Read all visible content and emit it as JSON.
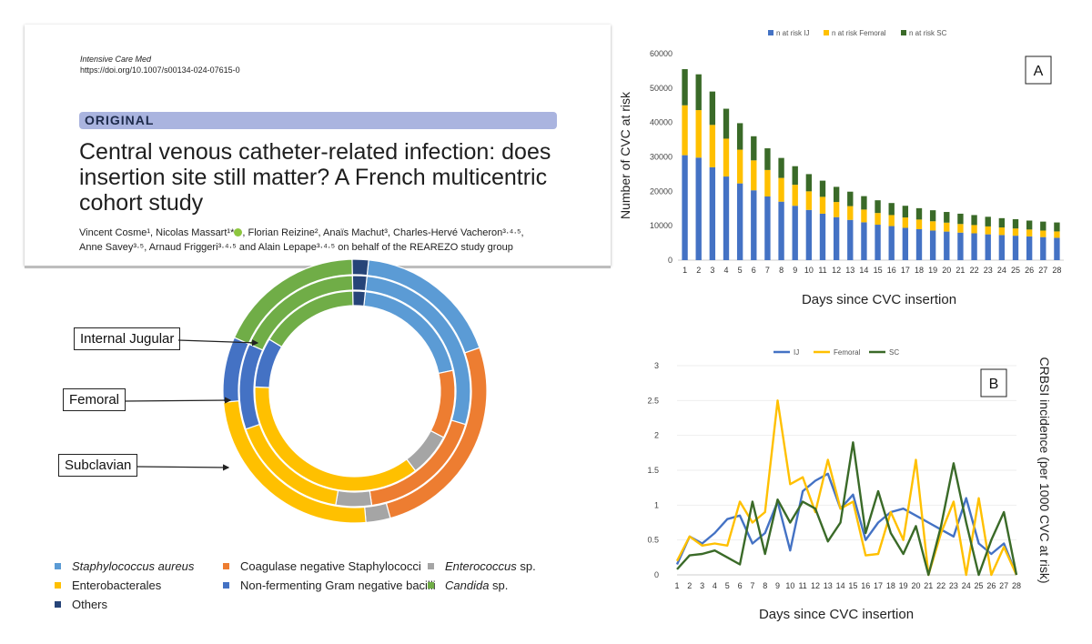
{
  "paper": {
    "journal": "Intensive Care Med",
    "doi": "https://doi.org/10.1007/s00134-024-07615-0",
    "section": "ORIGINAL",
    "title": "Central venous catheter-related infection: does insertion site still matter? A French multicentric cohort study",
    "authors_line1": "Vincent Cosme¹, Nicolas Massart¹*",
    "authors_line1b": ", Florian Reizine², Anaïs Machut³, Charles-Hervé Vacheron³·⁴·⁵,",
    "authors_line2": "Anne Savey³·⁵, Arnaud Friggeri³·⁴·⁵ and Alain Lepape³·⁴·⁵ on behalf of the REAREZO study group"
  },
  "donut_labels": {
    "internal_jugular": "Internal Jugular",
    "femoral": "Femoral",
    "subclavian": "Subclavian"
  },
  "donut_legend": [
    {
      "label": "Staphylococcus aureus",
      "italic": true,
      "color": "#5b9bd5"
    },
    {
      "label": "Coagulase negative Staphylococci",
      "italic": false,
      "color": "#ed7d31"
    },
    {
      "label": "Enterococcus",
      "suffix": " sp.",
      "italic": true,
      "color": "#a5a5a5"
    },
    {
      "label": "Enterobacterales",
      "italic": false,
      "color": "#ffc000"
    },
    {
      "label": "Non-fermenting Gram negative bacilli",
      "italic": false,
      "color": "#4472c4"
    },
    {
      "label": "Candida",
      "suffix": " sp.",
      "italic": true,
      "color": "#70ad47"
    },
    {
      "label": "Others",
      "italic": false,
      "color": "#264478"
    }
  ],
  "chart_data": [
    {
      "type": "bar",
      "stacked": true,
      "panel": "A",
      "xlabel": "Days since CVC insertion",
      "ylabel": "Number of CVC at risk",
      "ylim": [
        0,
        60000
      ],
      "yticks": [
        0,
        10000,
        20000,
        30000,
        40000,
        50000,
        60000
      ],
      "categories": [
        "1",
        "2",
        "3",
        "4",
        "5",
        "6",
        "7",
        "8",
        "9",
        "10",
        "11",
        "12",
        "13",
        "14",
        "15",
        "16",
        "17",
        "18",
        "19",
        "20",
        "21",
        "22",
        "23",
        "24",
        "25",
        "26",
        "27",
        "28"
      ],
      "series": [
        {
          "name": "n at risk IJ",
          "color": "#4472c4",
          "values": [
            30500,
            29800,
            27000,
            24300,
            22300,
            20300,
            18500,
            17000,
            15800,
            14600,
            13500,
            12500,
            11700,
            11000,
            10300,
            9900,
            9400,
            9000,
            8600,
            8300,
            8000,
            7800,
            7500,
            7300,
            7100,
            6900,
            6700,
            6500
          ]
        },
        {
          "name": "n at risk Femoral",
          "color": "#ffc000",
          "values": [
            14500,
            13800,
            12300,
            11000,
            9800,
            8700,
            7700,
            6900,
            6100,
            5400,
            4900,
            4400,
            4000,
            3700,
            3400,
            3200,
            3000,
            2800,
            2700,
            2600,
            2500,
            2400,
            2300,
            2200,
            2100,
            2000,
            1900,
            1850
          ]
        },
        {
          "name": "n at risk SC",
          "color": "#3a6a28",
          "values": [
            10500,
            10400,
            9700,
            8700,
            7700,
            7000,
            6300,
            5800,
            5400,
            5000,
            4700,
            4400,
            4200,
            3900,
            3700,
            3500,
            3400,
            3300,
            3200,
            3100,
            3000,
            2900,
            2800,
            2700,
            2700,
            2600,
            2600,
            2600
          ]
        }
      ]
    },
    {
      "type": "line",
      "panel": "B",
      "xlabel": "Days since CVC insertion",
      "ylabel": "CRBSI incidence (per 1000 CVC at risk)",
      "ylim": [
        0,
        3
      ],
      "yticks": [
        0,
        0.5,
        1,
        1.5,
        2,
        2.5,
        3
      ],
      "categories": [
        "1",
        "2",
        "3",
        "4",
        "5",
        "6",
        "7",
        "8",
        "9",
        "10",
        "11",
        "12",
        "13",
        "14",
        "15",
        "16",
        "17",
        "18",
        "19",
        "20",
        "21",
        "22",
        "23",
        "24",
        "25",
        "26",
        "27",
        "28"
      ],
      "series": [
        {
          "name": "IJ",
          "color": "#4472c4",
          "values": [
            0.15,
            0.55,
            0.45,
            0.6,
            0.8,
            0.85,
            0.45,
            0.6,
            1.05,
            0.35,
            1.2,
            1.35,
            1.45,
            0.95,
            1.15,
            0.5,
            0.75,
            0.9,
            0.95,
            0.85,
            0.75,
            0.65,
            0.55,
            1.1,
            0.45,
            0.3,
            0.45,
            0.0
          ]
        },
        {
          "name": "Femoral",
          "color": "#ffc000",
          "values": [
            0.2,
            0.55,
            0.42,
            0.45,
            0.42,
            1.05,
            0.75,
            0.9,
            2.5,
            1.3,
            1.4,
            0.9,
            1.65,
            0.95,
            1.05,
            0.28,
            0.3,
            0.9,
            0.5,
            1.65,
            0.0,
            0.6,
            1.05,
            0.0,
            1.1,
            0.0,
            0.4,
            0.0
          ]
        },
        {
          "name": "SC",
          "color": "#3a6a28",
          "values": [
            0.08,
            0.28,
            0.3,
            0.35,
            0.25,
            0.15,
            1.05,
            0.3,
            1.08,
            0.75,
            1.05,
            0.95,
            0.48,
            0.75,
            1.9,
            0.6,
            1.2,
            0.6,
            0.3,
            0.7,
            0.0,
            0.7,
            1.6,
            0.75,
            0.0,
            0.5,
            0.9,
            0.0
          ]
        }
      ]
    },
    {
      "type": "pie",
      "subtype": "nested-donut",
      "rings": [
        {
          "site": "Subclavian",
          "slices": [
            {
              "name": "Staphylococcus aureus",
              "value": 18
            },
            {
              "name": "Coagulase negative Staphylococci",
              "value": 26
            },
            {
              "name": "Enterococcus sp.",
              "value": 3
            },
            {
              "name": "Enterobacterales",
              "value": 25
            },
            {
              "name": "Non-fermenting Gram negative bacilli",
              "value": 8
            },
            {
              "name": "Candida sp.",
              "value": 18
            },
            {
              "name": "Others",
              "value": 2
            }
          ]
        },
        {
          "site": "Internal Jugular",
          "slices": [
            {
              "name": "Staphylococcus aureus",
              "value": 28
            },
            {
              "name": "Coagulase negative Staphylococci",
              "value": 18
            },
            {
              "name": "Enterococcus sp.",
              "value": 5
            },
            {
              "name": "Enterobacterales",
              "value": 17
            },
            {
              "name": "Non-fermenting Gram negative bacilli",
              "value": 12
            },
            {
              "name": "Candida sp.",
              "value": 18
            },
            {
              "name": "Others",
              "value": 2
            }
          ]
        },
        {
          "site": "Femoral",
          "slices": [
            {
              "name": "Staphylococcus aureus",
              "value": 20
            },
            {
              "name": "Coagulase negative Staphylococci",
              "value": 11
            },
            {
              "name": "Enterococcus sp.",
              "value": 7
            },
            {
              "name": "Enterobacterales",
              "value": 36
            },
            {
              "name": "Non-fermenting Gram negative bacilli",
              "value": 8
            },
            {
              "name": "Candida sp.",
              "value": 16
            },
            {
              "name": "Others",
              "value": 2
            }
          ]
        }
      ]
    }
  ]
}
